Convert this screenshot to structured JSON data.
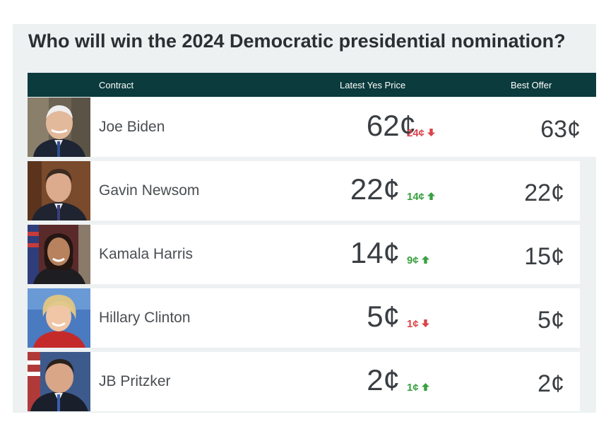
{
  "title": "Who will win the 2024 Democratic presidential nomination?",
  "columns": {
    "contract": "Contract",
    "latest_yes_price": "Latest Yes Price",
    "best_offer": "Best Offer"
  },
  "colors": {
    "header_bg": "#0b3b3c",
    "down": "#d9454b",
    "up": "#3aa040"
  },
  "rows": [
    {
      "name": "Joe Biden",
      "price": "62¢",
      "change": "24¢",
      "direction": "down",
      "change_icon": "arrow-down-icon",
      "offer": "63¢"
    },
    {
      "name": "Gavin Newsom",
      "price": "22¢",
      "change": "14¢",
      "direction": "up",
      "change_icon": "arrow-up-icon",
      "offer": "22¢"
    },
    {
      "name": "Kamala Harris",
      "price": "14¢",
      "change": "9¢",
      "direction": "up",
      "change_icon": "arrow-up-icon",
      "offer": "15¢"
    },
    {
      "name": "Hillary Clinton",
      "price": "5¢",
      "change": "1¢",
      "direction": "down",
      "change_icon": "arrow-down-icon",
      "offer": "5¢"
    },
    {
      "name": "JB Pritzker",
      "price": "2¢",
      "change": "1¢",
      "direction": "up",
      "change_icon": "arrow-up-icon",
      "offer": "2¢"
    }
  ]
}
